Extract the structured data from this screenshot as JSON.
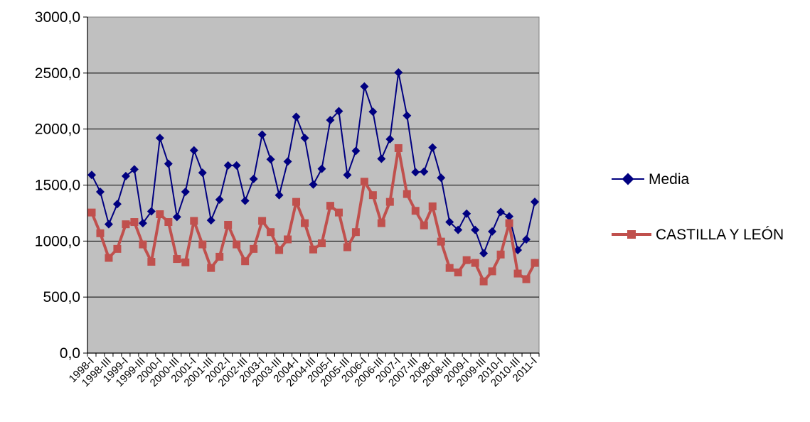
{
  "chart_data": {
    "type": "line",
    "title": "",
    "xlabel": "",
    "ylabel": "",
    "ylim": [
      0,
      3000
    ],
    "ytick_labels": [
      "0,0",
      "500,0",
      "1000,0",
      "1500,0",
      "2000,0",
      "2500,0",
      "3000,0"
    ],
    "x": [
      "1998-I",
      "1998-II",
      "1998-III",
      "1998-IV",
      "1999-I",
      "1999-II",
      "1999-III",
      "1999-IV",
      "2000-I",
      "2000-II",
      "2000-III",
      "2000-IV",
      "2001-I",
      "2001-II",
      "2001-III",
      "2001-IV",
      "2002-I",
      "2002-II",
      "2002-III",
      "2002-IV",
      "2003-I",
      "2003-II",
      "2003-III",
      "2003-IV",
      "2004-I",
      "2004-II",
      "2004-III",
      "2004-IV",
      "2005-I",
      "2005-II",
      "2005-III",
      "2005-IV",
      "2006-I",
      "2006-II",
      "2006-III",
      "2006-IV",
      "2007-I",
      "2007-II",
      "2007-III",
      "2007-IV",
      "2008-I",
      "2008-II",
      "2008-III",
      "2008-IV",
      "2009-I",
      "2009-II",
      "2009-III",
      "2009-IV",
      "2010-I",
      "2010-II",
      "2010-III",
      "2010-IV",
      "2011-I"
    ],
    "xtick_labels": [
      "1998-I",
      "1998-III",
      "1999-I",
      "1999-III",
      "2000-I",
      "2000-III",
      "2001-I",
      "2001-III",
      "2002-I",
      "2002-III",
      "2003-I",
      "2003-III",
      "2004-I",
      "2004-III",
      "2005-I",
      "2005-III",
      "2006-I",
      "2006-III",
      "2007-I",
      "2007-III",
      "2008-I",
      "2008-III",
      "2009-I",
      "2009-III",
      "2010-I",
      "2010-III",
      "2011-I"
    ],
    "grid": true,
    "legend_position": "right",
    "plot_background": "#c0c0c0",
    "series": [
      {
        "name": "Media",
        "color": "#000080",
        "marker": "diamond",
        "values": [
          1590,
          1440,
          1150,
          1330,
          1580,
          1640,
          1160,
          1265,
          1920,
          1690,
          1215,
          1440,
          1810,
          1610,
          1185,
          1370,
          1675,
          1675,
          1360,
          1555,
          1950,
          1730,
          1410,
          1710,
          2110,
          1920,
          1505,
          1645,
          2080,
          2160,
          1590,
          1805,
          2380,
          2155,
          1735,
          1910,
          2505,
          2120,
          1615,
          1620,
          1835,
          1565,
          1170,
          1100,
          1245,
          1100,
          890,
          1085,
          1260,
          1220,
          920,
          1015,
          1350
        ]
      },
      {
        "name": "CASTILLA Y LEÓN",
        "color": "#c0504d",
        "marker": "square",
        "values": [
          1255,
          1070,
          850,
          930,
          1150,
          1170,
          970,
          815,
          1240,
          1170,
          840,
          810,
          1180,
          970,
          760,
          860,
          1145,
          970,
          820,
          930,
          1180,
          1080,
          920,
          1015,
          1350,
          1160,
          925,
          980,
          1315,
          1255,
          945,
          1080,
          1530,
          1410,
          1160,
          1350,
          1830,
          1420,
          1270,
          1140,
          1310,
          995,
          760,
          720,
          830,
          805,
          640,
          730,
          880,
          1160,
          710,
          660,
          805
        ]
      }
    ]
  }
}
